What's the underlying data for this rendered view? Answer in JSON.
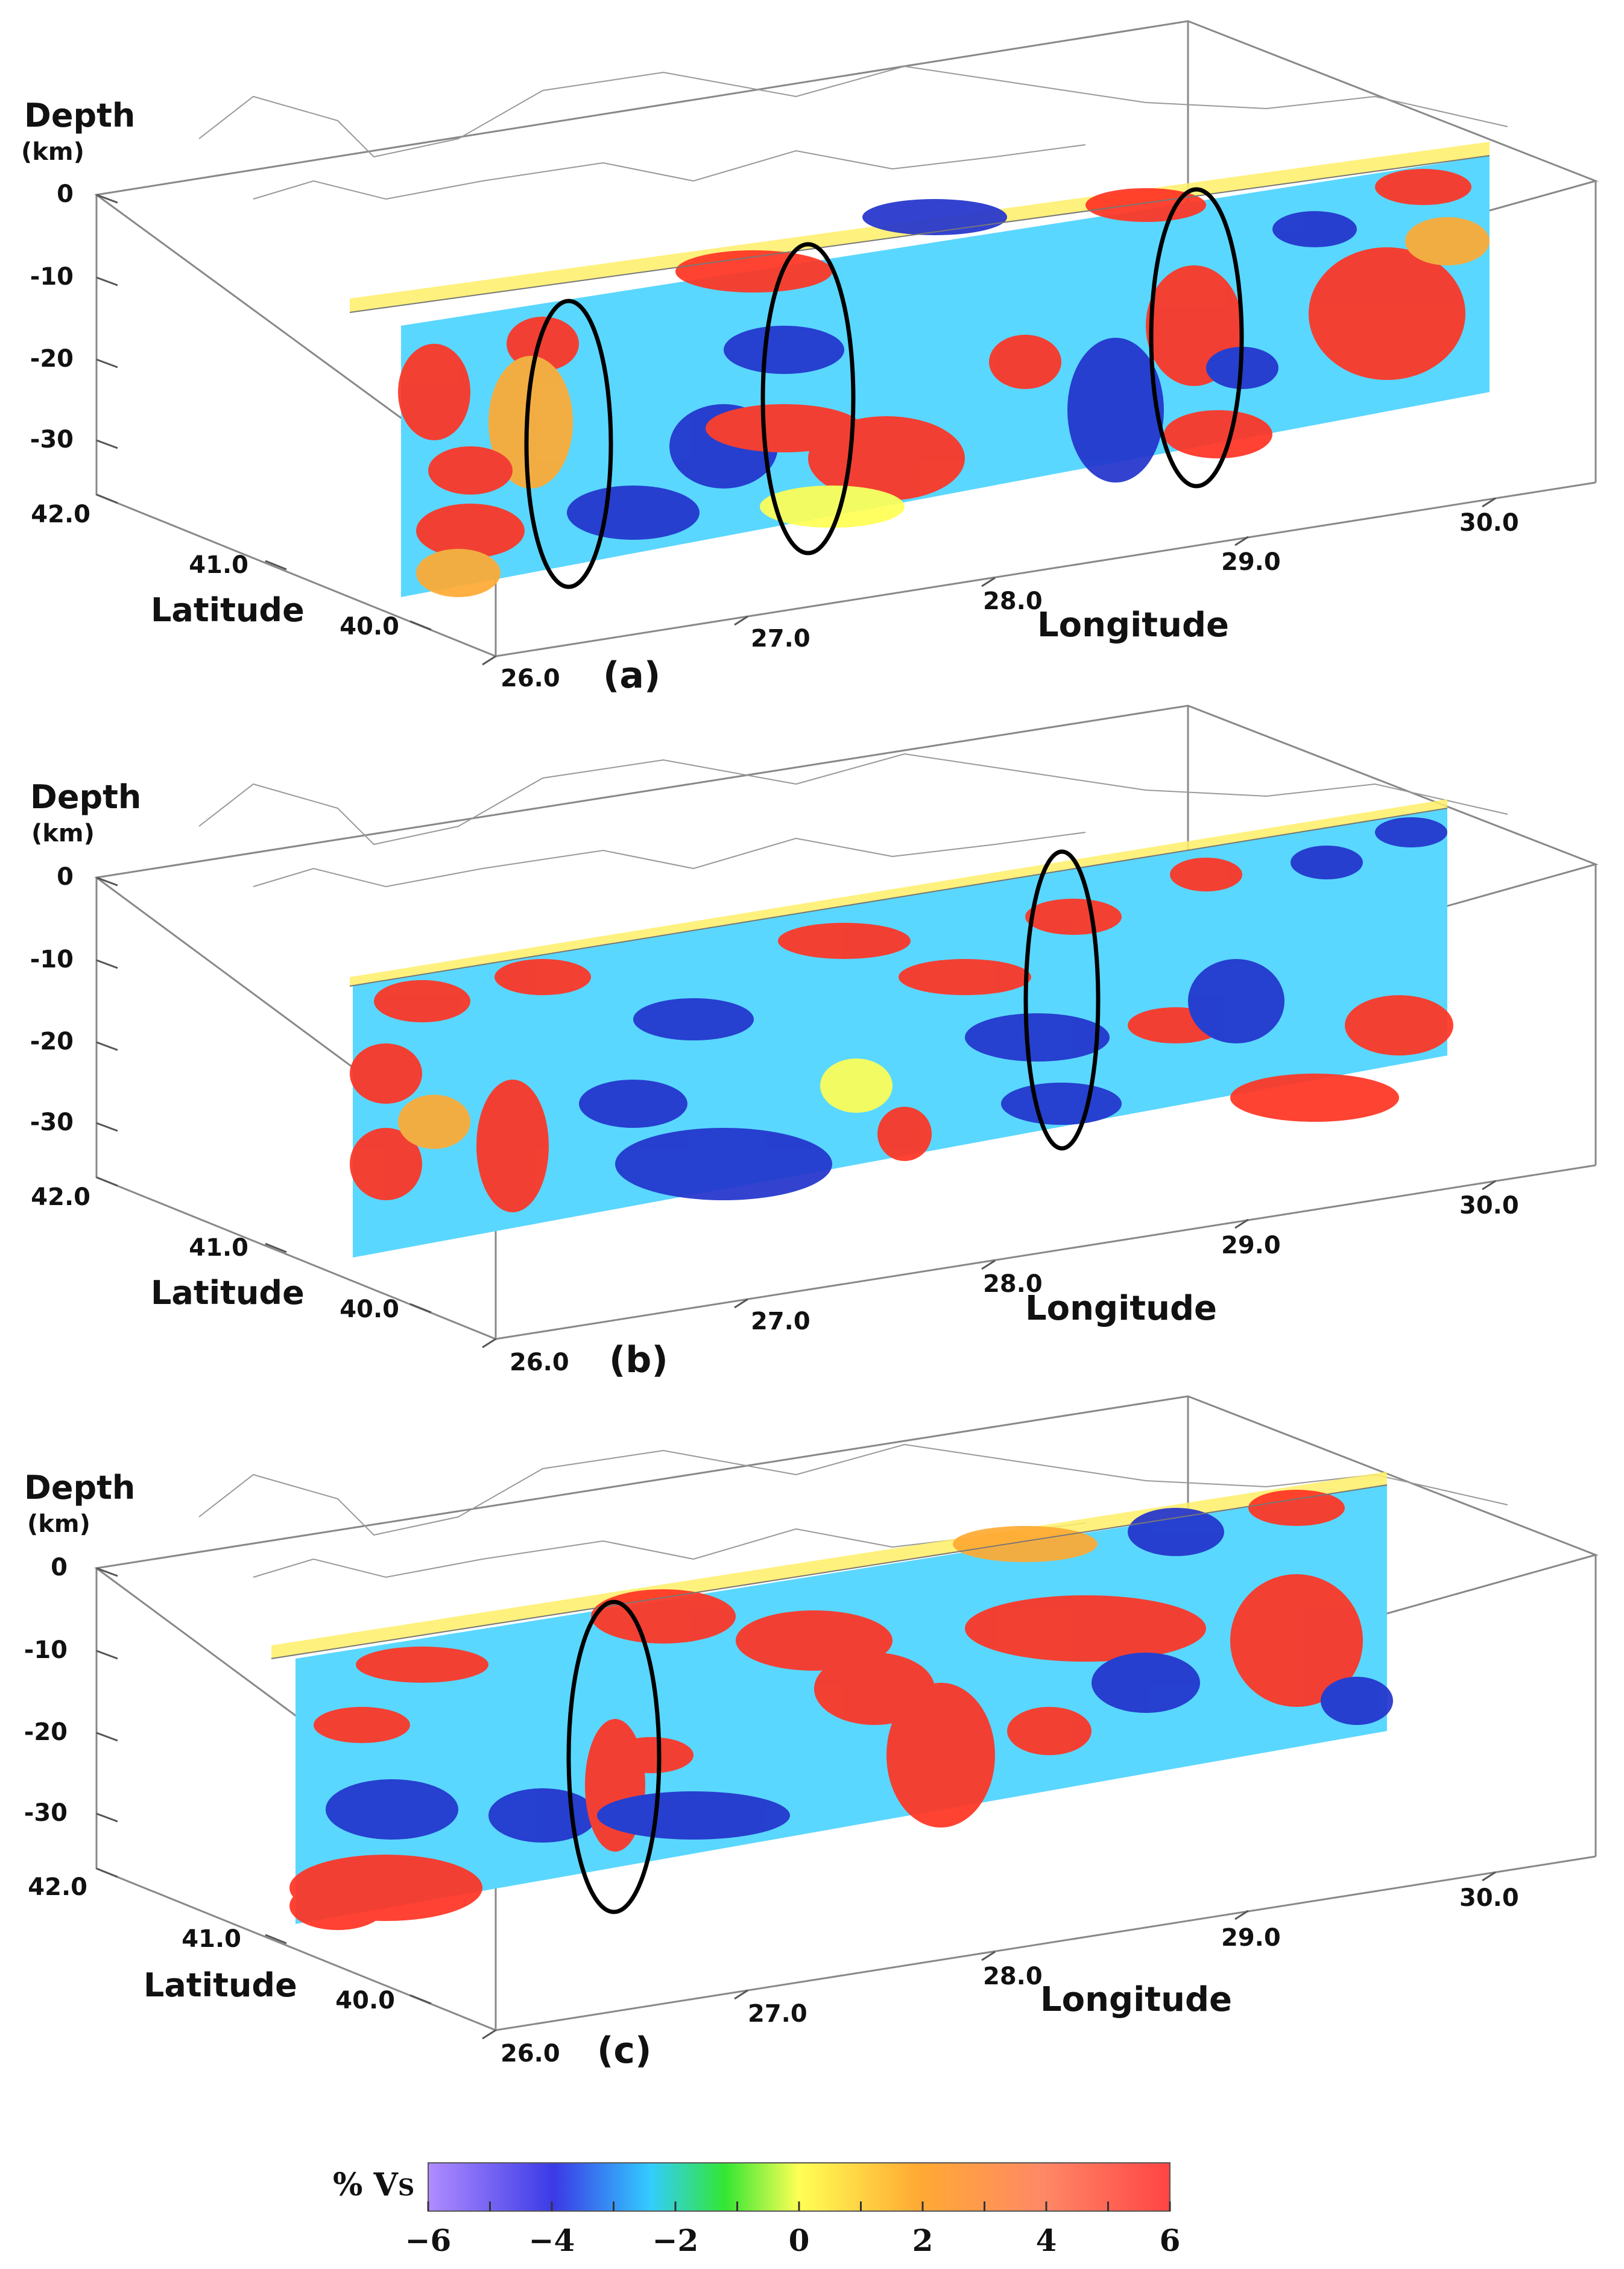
{
  "chart_data": {
    "type": "heatmap",
    "panels": [
      {
        "panel_label": "(a)",
        "depth_axis": {
          "title": "Depth",
          "unit": "(km)",
          "ticks": [
            "0",
            "-10",
            "-20",
            "-30"
          ],
          "range": [
            -42,
            0
          ]
        },
        "latitude_axis": {
          "title": "Latitude",
          "ticks": [
            "42.0",
            "41.0",
            "40.0"
          ],
          "range": [
            40.0,
            42.0
          ]
        },
        "longitude_axis": {
          "title": "Longitude",
          "ticks": [
            "26.0",
            "27.0",
            "28.0",
            "29.0",
            "30.0"
          ],
          "range": [
            26.0,
            30.3
          ]
        },
        "highlighted_zones": [
          {
            "longitude": 26.3,
            "depth_range": [
              -12,
              -38
            ]
          },
          {
            "longitude": 27.2,
            "depth_range": [
              -6,
              -34
            ]
          },
          {
            "longitude": 28.9,
            "depth_range": [
              -2,
              -30
            ]
          }
        ]
      },
      {
        "panel_label": "(b)",
        "depth_axis": {
          "title": "Depth",
          "unit": "(km)",
          "ticks": [
            "0",
            "-10",
            "-20",
            "-30"
          ],
          "range": [
            -42,
            0
          ]
        },
        "latitude_axis": {
          "title": "Latitude",
          "ticks": [
            "42.0",
            "41.0",
            "40.0"
          ],
          "range": [
            40.0,
            42.0
          ]
        },
        "longitude_axis": {
          "title": "Longitude",
          "ticks": [
            "26.0",
            "27.0",
            "28.0",
            "29.0",
            "30.0"
          ],
          "range": [
            26.0,
            30.3
          ]
        },
        "highlighted_zones": [
          {
            "longitude": 28.5,
            "depth_range": [
              -2,
              -34
            ]
          }
        ]
      },
      {
        "panel_label": "(c)",
        "depth_axis": {
          "title": "Depth",
          "unit": "(km)",
          "ticks": [
            "0",
            "-10",
            "-20",
            "-30"
          ],
          "range": [
            -42,
            0
          ]
        },
        "latitude_axis": {
          "title": "Latitude",
          "ticks": [
            "42.0",
            "41.0",
            "40.0"
          ],
          "range": [
            40.0,
            42.0
          ]
        },
        "longitude_axis": {
          "title": "Longitude",
          "ticks": [
            "26.0",
            "27.0",
            "28.0",
            "29.0",
            "30.0"
          ],
          "range": [
            26.0,
            30.3
          ]
        },
        "highlighted_zones": [
          {
            "longitude": 26.8,
            "depth_range": [
              -4,
              -36
            ]
          }
        ]
      }
    ],
    "colorbar": {
      "label_main": "% V",
      "label_sub": "S",
      "range": [
        -6,
        6
      ],
      "ticks": [
        "−6",
        "−4",
        "−2",
        "0",
        "2",
        "4",
        "6"
      ],
      "colors": [
        "#b08cff",
        "#3a3ae6",
        "#33ccff",
        "#33e633",
        "#ffff55",
        "#ffaa33",
        "#ff8866",
        "#ff4444"
      ]
    }
  }
}
